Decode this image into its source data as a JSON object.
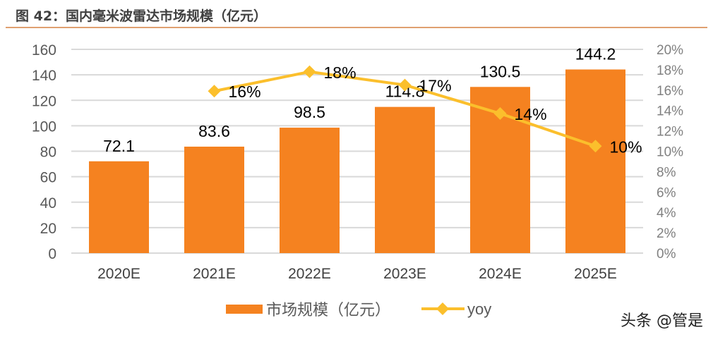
{
  "figure_title": "图 42：国内毫米波雷达市场规模（亿元）",
  "watermark": "头条 @管是",
  "chart_data": {
    "type": "bar+line",
    "categories": [
      "2020E",
      "2021E",
      "2022E",
      "2023E",
      "2024E",
      "2025E"
    ],
    "series": [
      {
        "name": "市场规模（亿元）",
        "type": "bar",
        "axis": "left",
        "color": "#f58220",
        "values": [
          72.1,
          83.6,
          98.5,
          114.8,
          130.5,
          144.2
        ],
        "labels": [
          "72.1",
          "83.6",
          "98.5",
          "114.8",
          "130.5",
          "144.2"
        ]
      },
      {
        "name": "yoy",
        "type": "line",
        "axis": "right",
        "color": "#fbbf2c",
        "marker": "diamond",
        "values": [
          null,
          15.9,
          17.8,
          16.5,
          13.7,
          10.5
        ],
        "labels": [
          null,
          "16%",
          "18%",
          "17%",
          "14%",
          "10%"
        ]
      }
    ],
    "left_axis": {
      "range": [
        0,
        160
      ],
      "ticks": [
        "0",
        "20",
        "40",
        "60",
        "80",
        "100",
        "120",
        "140",
        "160"
      ]
    },
    "right_axis": {
      "range": [
        0,
        20
      ],
      "ticks": [
        "0%",
        "2%",
        "4%",
        "6%",
        "8%",
        "10%",
        "12%",
        "14%",
        "16%",
        "18%",
        "20%"
      ]
    },
    "grid": true,
    "legend": "bottom"
  }
}
